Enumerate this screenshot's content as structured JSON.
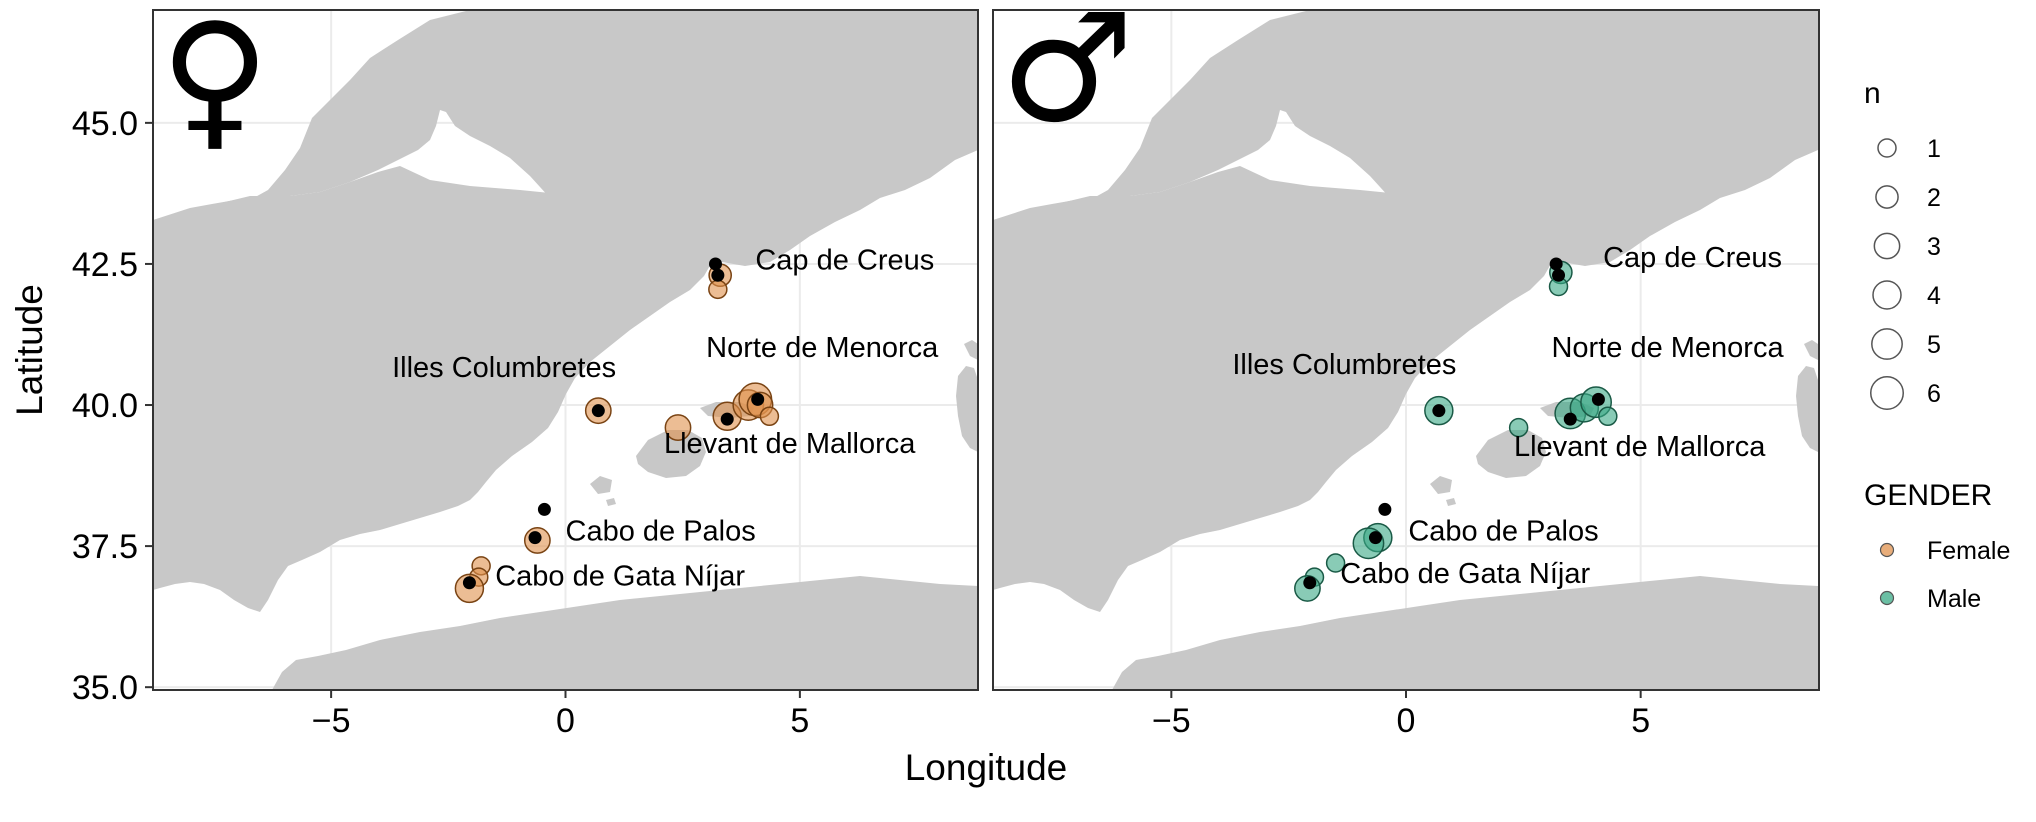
{
  "axes": {
    "x_title": "Longitude",
    "y_title": "Latitude",
    "x_ticks": [
      {
        "value": -5,
        "label": "−5"
      },
      {
        "value": 0,
        "label": "0"
      },
      {
        "value": 5,
        "label": "5"
      }
    ],
    "y_ticks": [
      {
        "value": 35.0,
        "label": "35.0"
      },
      {
        "value": 37.5,
        "label": "37.5"
      },
      {
        "value": 40.0,
        "label": "40.0"
      },
      {
        "value": 42.5,
        "label": "42.5"
      },
      {
        "value": 45.0,
        "label": "45.0"
      }
    ],
    "x_range": [
      -8.8,
      8.8
    ],
    "y_range": [
      34.95,
      47.0
    ]
  },
  "colors": {
    "land": "#c8c8c8",
    "sea": "#ffffff",
    "grid": "#ebebeb",
    "female": "#e0914d",
    "male": "#3aa985",
    "station": "#000000"
  },
  "panels": [
    {
      "id": "female",
      "symbol": "♀",
      "gender": "Female",
      "labels": [
        {
          "text": "Cap de Creus",
          "lon": 4.05,
          "lat": 42.4
        },
        {
          "text": "Norte de Menorca",
          "lon": 3.0,
          "lat": 40.85
        },
        {
          "text": "Illes Columbretes",
          "lon": -3.7,
          "lat": 40.5
        },
        {
          "text": "Llevant de Mallorca",
          "lon": 2.1,
          "lat": 39.15
        },
        {
          "text": "Cabo de Palos",
          "lon": 0.0,
          "lat": 37.6
        },
        {
          "text": "Cabo de Gata Níjar",
          "lon": -1.5,
          "lat": 36.8
        }
      ],
      "points": [
        {
          "lon": 3.3,
          "lat": 42.3,
          "n": 2
        },
        {
          "lon": 3.25,
          "lat": 42.05,
          "n": 1
        },
        {
          "lon": 0.7,
          "lat": 39.9,
          "n": 3
        },
        {
          "lon": 2.4,
          "lat": 39.6,
          "n": 3
        },
        {
          "lon": 3.45,
          "lat": 39.8,
          "n": 4
        },
        {
          "lon": 3.9,
          "lat": 40.0,
          "n": 5
        },
        {
          "lon": 4.05,
          "lat": 40.1,
          "n": 6
        },
        {
          "lon": 4.15,
          "lat": 40.0,
          "n": 3
        },
        {
          "lon": 4.35,
          "lat": 39.8,
          "n": 1
        },
        {
          "lon": -0.6,
          "lat": 37.6,
          "n": 3
        },
        {
          "lon": -1.8,
          "lat": 37.15,
          "n": 1
        },
        {
          "lon": -1.85,
          "lat": 36.95,
          "n": 1
        },
        {
          "lon": -2.05,
          "lat": 36.75,
          "n": 4
        }
      ],
      "stations": [
        {
          "lon": 3.2,
          "lat": 42.5
        },
        {
          "lon": 3.25,
          "lat": 42.3
        },
        {
          "lon": 0.7,
          "lat": 39.9
        },
        {
          "lon": 3.45,
          "lat": 39.75
        },
        {
          "lon": 4.1,
          "lat": 40.1
        },
        {
          "lon": -0.45,
          "lat": 38.15
        },
        {
          "lon": -0.65,
          "lat": 37.65
        },
        {
          "lon": -2.05,
          "lat": 36.85
        }
      ]
    },
    {
      "id": "male",
      "symbol": "♂",
      "gender": "Male",
      "labels": [
        {
          "text": "Cap de Creus",
          "lon": 4.2,
          "lat": 42.45
        },
        {
          "text": "Norte de Menorca",
          "lon": 3.1,
          "lat": 40.85
        },
        {
          "text": "Illes Columbretes",
          "lon": -3.7,
          "lat": 40.55
        },
        {
          "text": "Llevant de Mallorca",
          "lon": 2.3,
          "lat": 39.1
        },
        {
          "text": "Cabo de Palos",
          "lon": 0.05,
          "lat": 37.6
        },
        {
          "text": "Cabo de Gata Níjar",
          "lon": -1.4,
          "lat": 36.85
        }
      ],
      "points": [
        {
          "lon": 3.3,
          "lat": 42.35,
          "n": 2
        },
        {
          "lon": 3.25,
          "lat": 42.1,
          "n": 1
        },
        {
          "lon": 0.7,
          "lat": 39.9,
          "n": 4
        },
        {
          "lon": 2.4,
          "lat": 39.6,
          "n": 1
        },
        {
          "lon": 3.5,
          "lat": 39.85,
          "n": 5
        },
        {
          "lon": 3.8,
          "lat": 39.95,
          "n": 4
        },
        {
          "lon": 4.05,
          "lat": 40.05,
          "n": 5
        },
        {
          "lon": 4.3,
          "lat": 39.8,
          "n": 1
        },
        {
          "lon": -0.6,
          "lat": 37.65,
          "n": 4
        },
        {
          "lon": -0.8,
          "lat": 37.55,
          "n": 5
        },
        {
          "lon": -1.5,
          "lat": 37.2,
          "n": 1
        },
        {
          "lon": -1.95,
          "lat": 36.95,
          "n": 1
        },
        {
          "lon": -2.1,
          "lat": 36.75,
          "n": 3
        }
      ],
      "stations": [
        {
          "lon": 3.2,
          "lat": 42.5
        },
        {
          "lon": 3.25,
          "lat": 42.3
        },
        {
          "lon": 0.7,
          "lat": 39.9
        },
        {
          "lon": 3.5,
          "lat": 39.75
        },
        {
          "lon": 4.1,
          "lat": 40.1
        },
        {
          "lon": -0.45,
          "lat": 38.15
        },
        {
          "lon": -0.65,
          "lat": 37.65
        },
        {
          "lon": -2.05,
          "lat": 36.85
        }
      ]
    }
  ],
  "legend": {
    "size_title": "n",
    "sizes": [
      1,
      2,
      3,
      4,
      5,
      6
    ],
    "gender_title": "GENDER",
    "genders": [
      {
        "label": "Female",
        "color": "#e0914d"
      },
      {
        "label": "Male",
        "color": "#3aa985"
      }
    ]
  }
}
